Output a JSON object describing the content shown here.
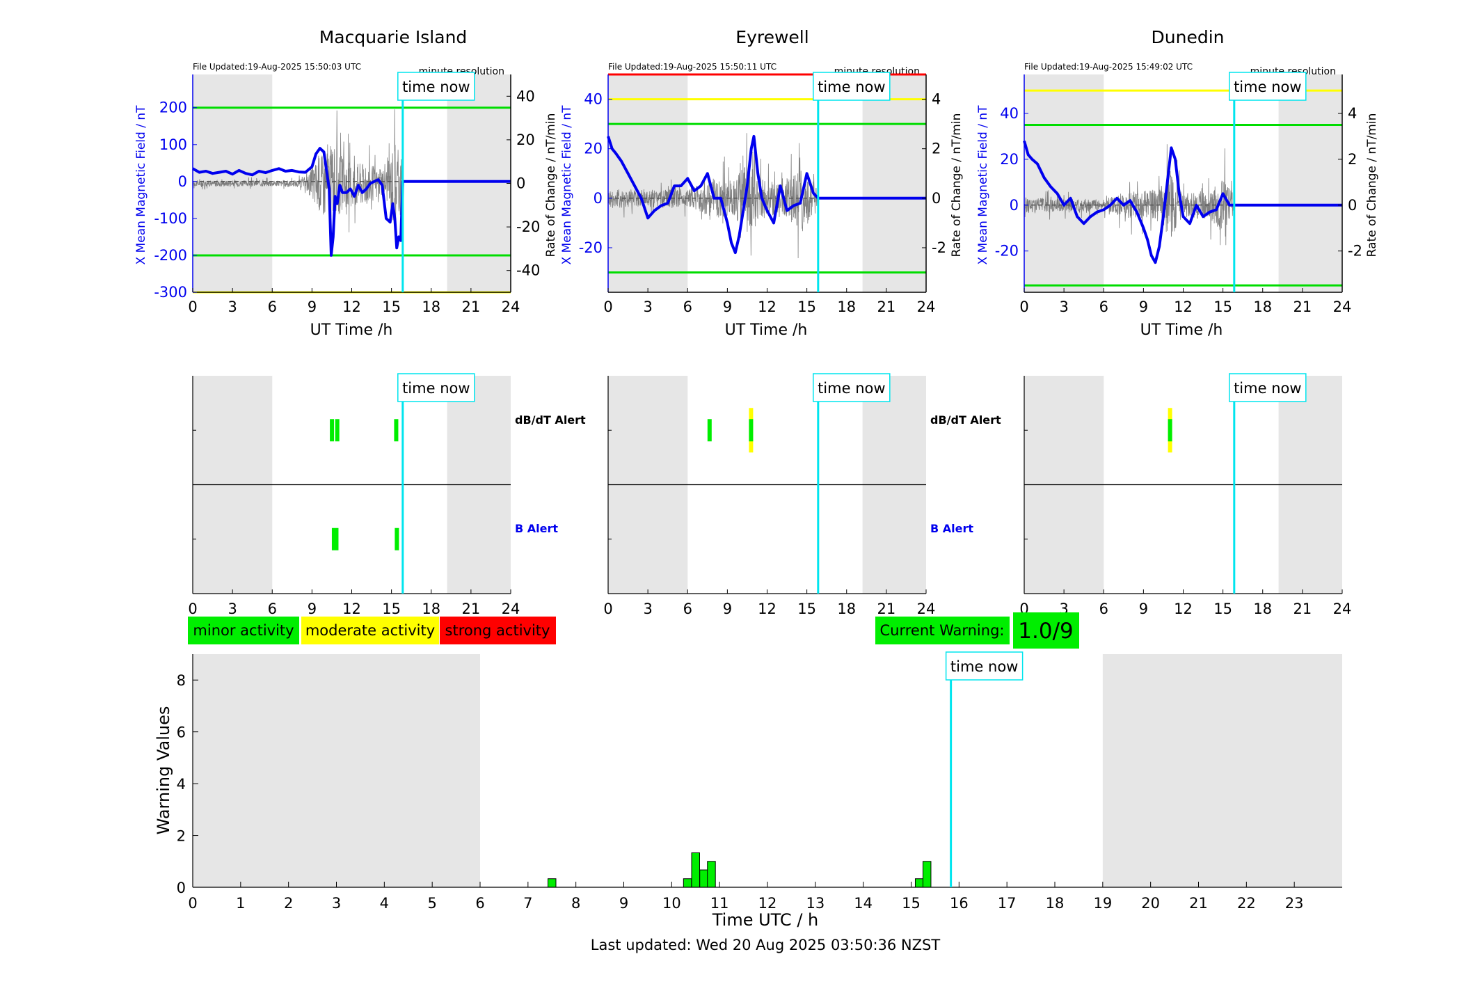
{
  "panels": [
    {
      "station": "Macquarie Island",
      "file_updated": "File Updated:19-Aug-2025 15:50:03 UTC",
      "resolution": "minute resolution",
      "left_ylabel": "X Mean Magnetic Field / nT",
      "right_ylabel": "Rate of Change / nT/min",
      "xlabel": "UT Time /h",
      "time_now_label": "time now",
      "dbdt_alert_label": "dB/dT Alert",
      "b_alert_label": "B Alert"
    },
    {
      "station": "Eyrewell",
      "file_updated": "File Updated:19-Aug-2025 15:50:11 UTC",
      "resolution": "minute resolution",
      "left_ylabel": "X Mean Magnetic Field / nT",
      "right_ylabel": "Rate of Change / nT/min",
      "xlabel": "UT Time /h",
      "time_now_label": "time now",
      "dbdt_alert_label": "dB/dT Alert",
      "b_alert_label": "B Alert"
    },
    {
      "station": "Dunedin",
      "file_updated": "File Updated:19-Aug-2025 15:49:02 UTC",
      "resolution": "minute resolution",
      "left_ylabel": "X Mean Magnetic Field / nT",
      "right_ylabel": "Rate of Change / nT/min",
      "xlabel": "UT Time /h",
      "time_now_label": "time now",
      "dbdt_alert_label": "",
      "b_alert_label": ""
    }
  ],
  "legend": {
    "minor": "minor activity",
    "moderate": "moderate activity",
    "strong": "strong activity"
  },
  "current_warning": {
    "label": "Current Warning:",
    "value": "1.0/9"
  },
  "bottom": {
    "ylabel": "Warning Values",
    "xlabel": "Time UTC / h",
    "time_now_label": "time now",
    "last_updated": "Last updated: Wed 20 Aug 2025 03:50:36 NZST"
  },
  "colors": {
    "field_line": "#0000ee",
    "rate_line": "#555555",
    "threshold_green": "#00dd00",
    "threshold_yellow": "#ffff00",
    "threshold_red": "#ff0000",
    "time_now": "#00e5ee",
    "night_shade": "#e6e6e6",
    "alert_green": "#00ee00",
    "alert_yellow": "#ffff00",
    "legend_minor": "#00ee00",
    "legend_moderate": "#ffff00",
    "legend_strong": "#ff0000"
  },
  "chart_data": [
    {
      "type": "line",
      "title": "Macquarie Island",
      "xlabel": "UT Time /h",
      "ylabel": "X Mean Magnetic Field / nT",
      "ylabel_right": "Rate of Change / nT/min",
      "xlim": [
        0,
        24
      ],
      "xticks": [
        0,
        3,
        6,
        9,
        12,
        15,
        18,
        21,
        24
      ],
      "ylim": [
        -300,
        290
      ],
      "yticks": [
        -300,
        -200,
        -100,
        0,
        100,
        200
      ],
      "ylim_right": [
        -50,
        50
      ],
      "yticks_right": [
        -40,
        -20,
        0,
        20,
        40
      ],
      "time_now": 15.85,
      "night_shading": [
        [
          0,
          6
        ],
        [
          19.2,
          24
        ]
      ],
      "thresholds_left": [
        {
          "value": 200,
          "color": "green"
        },
        {
          "value": -200,
          "color": "green"
        },
        {
          "value": -300,
          "color": "yellow"
        }
      ],
      "series": [
        {
          "axis": "left",
          "x": [
            0,
            0.5,
            1,
            1.5,
            2,
            2.5,
            3,
            3.5,
            4,
            4.5,
            5,
            5.5,
            6,
            6.5,
            7,
            7.5,
            8,
            8.5,
            9,
            9.3,
            9.6,
            9.9,
            10.1,
            10.3,
            10.45,
            10.6,
            10.75,
            10.9,
            11.1,
            11.3,
            11.6,
            11.9,
            12.2,
            12.5,
            12.8,
            13.1,
            13.4,
            13.7,
            14.0,
            14.3,
            14.6,
            14.9,
            15.1,
            15.25,
            15.4,
            15.55,
            15.7,
            15.85,
            18,
            21,
            24
          ],
          "values": [
            35,
            25,
            28,
            22,
            25,
            28,
            20,
            30,
            22,
            18,
            28,
            24,
            30,
            35,
            28,
            30,
            26,
            25,
            40,
            75,
            90,
            80,
            30,
            -20,
            -200,
            -150,
            -40,
            -60,
            -10,
            -30,
            -30,
            -20,
            -40,
            -10,
            -30,
            -20,
            -5,
            0,
            5,
            -10,
            -100,
            -110,
            -60,
            -100,
            -180,
            -150,
            -160,
            0,
            0,
            0,
            0
          ]
        }
      ]
    },
    {
      "type": "line",
      "title": "Eyrewell",
      "xlabel": "UT Time /h",
      "ylabel": "X Mean Magnetic Field / nT",
      "ylabel_right": "Rate of Change / nT/min",
      "xlim": [
        0,
        24
      ],
      "xticks": [
        0,
        3,
        6,
        9,
        12,
        15,
        18,
        21,
        24
      ],
      "ylim": [
        -38,
        50
      ],
      "yticks": [
        -20,
        0,
        20,
        40
      ],
      "ylim_right": [
        -3.8,
        5.0
      ],
      "yticks_right": [
        -2,
        0,
        2,
        4
      ],
      "time_now": 15.85,
      "night_shading": [
        [
          0,
          6
        ],
        [
          19.2,
          24
        ]
      ],
      "thresholds_left": [
        {
          "value": 50,
          "color": "red"
        },
        {
          "value": 40,
          "color": "yellow"
        },
        {
          "value": 30,
          "color": "green"
        },
        {
          "value": -30,
          "color": "green"
        }
      ],
      "series": [
        {
          "axis": "left",
          "x": [
            0,
            0.3,
            0.6,
            1,
            1.5,
            2,
            2.5,
            3,
            3.5,
            4,
            4.5,
            5,
            5.5,
            6,
            6.5,
            7,
            7.5,
            8,
            8.5,
            9,
            9.3,
            9.6,
            9.9,
            10.2,
            10.5,
            10.8,
            11.0,
            11.3,
            11.6,
            12,
            12.5,
            13,
            13.5,
            14,
            14.5,
            15,
            15.5,
            15.85,
            18,
            21,
            24
          ],
          "values": [
            25,
            20,
            18,
            15,
            10,
            5,
            0,
            -8,
            -5,
            -3,
            -2,
            5,
            5,
            8,
            3,
            5,
            10,
            0,
            0,
            -10,
            -18,
            -22,
            -15,
            -5,
            5,
            20,
            25,
            10,
            0,
            -5,
            -10,
            5,
            -5,
            -3,
            -2,
            10,
            2,
            0,
            0,
            0,
            0
          ]
        }
      ]
    },
    {
      "type": "line",
      "title": "Dunedin",
      "xlabel": "UT Time /h",
      "ylabel": "X Mean Magnetic Field / nT",
      "ylabel_right": "Rate of Change / nT/min",
      "xlim": [
        0,
        24
      ],
      "xticks": [
        0,
        3,
        6,
        9,
        12,
        15,
        18,
        21,
        24
      ],
      "ylim": [
        -38,
        57
      ],
      "yticks": [
        -20,
        0,
        20,
        40
      ],
      "ylim_right": [
        -3.8,
        5.7
      ],
      "yticks_right": [
        -2,
        0,
        2,
        4
      ],
      "time_now": 15.85,
      "night_shading": [
        [
          0,
          6
        ],
        [
          19.2,
          24
        ]
      ],
      "thresholds_left": [
        {
          "value": 50,
          "color": "yellow"
        },
        {
          "value": 35,
          "color": "green"
        },
        {
          "value": -35,
          "color": "green"
        }
      ],
      "series": [
        {
          "axis": "left",
          "x": [
            0,
            0.3,
            0.6,
            1,
            1.5,
            2,
            2.5,
            3,
            3.5,
            4,
            4.5,
            5,
            5.5,
            6,
            6.5,
            7,
            7.5,
            8,
            8.5,
            9,
            9.3,
            9.6,
            9.9,
            10.2,
            10.5,
            10.8,
            11.1,
            11.4,
            11.7,
            12,
            12.5,
            13,
            13.5,
            14,
            14.5,
            15,
            15.5,
            15.85,
            18,
            21,
            24
          ],
          "values": [
            28,
            22,
            20,
            18,
            12,
            8,
            5,
            0,
            3,
            -5,
            -8,
            -5,
            -3,
            -2,
            0,
            3,
            0,
            2,
            -3,
            -10,
            -15,
            -22,
            -25,
            -18,
            -5,
            10,
            25,
            20,
            5,
            -5,
            -8,
            0,
            -5,
            -3,
            -2,
            5,
            0,
            0,
            0,
            0,
            0
          ]
        }
      ]
    },
    {
      "type": "bar",
      "title": "",
      "xlabel": "Time UTC / h",
      "ylabel": "Warning Values",
      "xlim": [
        0,
        24
      ],
      "xticks": [
        0,
        1,
        2,
        3,
        4,
        5,
        6,
        7,
        8,
        9,
        10,
        11,
        12,
        13,
        14,
        15,
        16,
        17,
        18,
        19,
        20,
        21,
        22,
        23
      ],
      "ylim": [
        0,
        9
      ],
      "yticks": [
        0,
        2,
        4,
        6,
        8
      ],
      "time_now": 15.83,
      "night_shading": [
        [
          0,
          6
        ],
        [
          19.0,
          24
        ]
      ],
      "bars": {
        "x": [
          7.5,
          10.33,
          10.5,
          10.67,
          10.83,
          15.17,
          15.33
        ],
        "values": [
          0.33,
          0.33,
          1.33,
          0.67,
          1.0,
          0.33,
          1.0
        ]
      }
    }
  ]
}
